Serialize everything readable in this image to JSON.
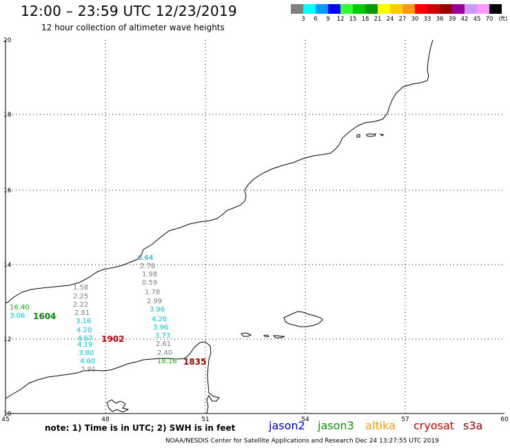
{
  "header": {
    "title": "12:00 – 23:59 UTC 12/23/2019",
    "subtitle": "12 hour collection of altimeter wave heights"
  },
  "legend": {
    "colors": [
      "#808080",
      "#00ffff",
      "#0099ff",
      "#0000ff",
      "#33ff33",
      "#00cc00",
      "#009900",
      "#ffff00",
      "#ffcc00",
      "#ff9900",
      "#ff0000",
      "#cc0000",
      "#990000",
      "#990099",
      "#cc99ff",
      "#ff99ff",
      "#000000"
    ],
    "labels": [
      "3",
      "6",
      "9",
      "12",
      "15",
      "18",
      "21",
      "24",
      "27",
      "30",
      "33",
      "36",
      "39",
      "42",
      "45",
      "70"
    ],
    "unit": "(ft)"
  },
  "axes": {
    "y_labels": [
      "20",
      "18",
      "16",
      "14",
      "12",
      "10"
    ],
    "x_labels": [
      "45",
      "48",
      "51",
      "54",
      "57",
      "60"
    ]
  },
  "measurements": [
    {
      "text": "6.64",
      "color": "#00a0c0"
    },
    {
      "text": "2.78",
      "color": "#808080"
    },
    {
      "text": "1.98",
      "color": "#808080"
    },
    {
      "text": "0.59",
      "color": "#808080"
    },
    {
      "text": "1.78",
      "color": "#808080"
    },
    {
      "text": "2.99",
      "color": "#808080"
    },
    {
      "text": "3.96",
      "color": "#00c8d8"
    },
    {
      "text": "4.26",
      "color": "#00c8d8"
    },
    {
      "text": "3.96",
      "color": "#00c8d8"
    },
    {
      "text": "3.73",
      "color": "#00c8d8"
    },
    {
      "text": "2.61",
      "color": "#808080"
    },
    {
      "text": "2.40",
      "color": "#808080"
    },
    {
      "text": "18.16",
      "color": "#00bb00"
    },
    {
      "text": "1.58",
      "color": "#808080"
    },
    {
      "text": "2.25",
      "color": "#808080"
    },
    {
      "text": "2.22",
      "color": "#808080"
    },
    {
      "text": "2.81",
      "color": "#808080"
    },
    {
      "text": "3.16",
      "color": "#00c8d8"
    },
    {
      "text": "4.20",
      "color": "#00c8d8"
    },
    {
      "text": "4.67",
      "color": "#00c8d8"
    },
    {
      "text": "4.19",
      "color": "#00c8d8"
    },
    {
      "text": "3.80",
      "color": "#00c8d8"
    },
    {
      "text": "4.60",
      "color": "#00c8d8"
    },
    {
      "text": "2.91",
      "color": "#808080"
    },
    {
      "text": "16.40",
      "color": "#00bb00"
    },
    {
      "text": "3.06",
      "color": "#00c8d8"
    }
  ],
  "passes": [
    {
      "time": "1604",
      "color": "#008800"
    },
    {
      "time": "1902",
      "color": "#cc0000"
    },
    {
      "time": "1835",
      "color": "#990000"
    }
  ],
  "note": "note: 1) Time is in UTC; 2) SWH is in feet",
  "satellites": [
    {
      "name": "jason2",
      "color": "#0000cc"
    },
    {
      "name": "jason3",
      "color": "#009900"
    },
    {
      "name": "altika",
      "color": "#ff9900"
    },
    {
      "name": "cryosat",
      "color": "#cc0000"
    },
    {
      "name": "s3a",
      "color": "#990000"
    }
  ],
  "footer": "NOAA/NESDIS Center for Satellite Applications and Research    Dec 24 13:27:55 UTC 2019"
}
